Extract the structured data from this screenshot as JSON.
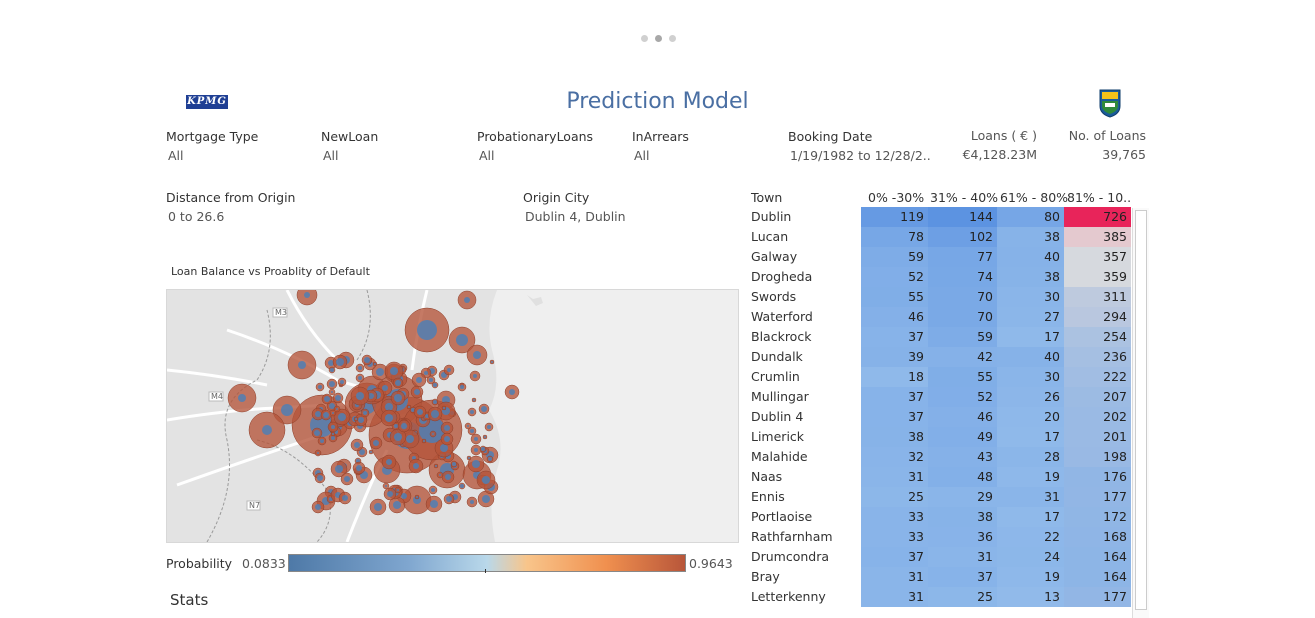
{
  "header": {
    "title": "Prediction Model",
    "left_logo": "KPMG",
    "right_logo_icon": "ucd-crest-icon"
  },
  "pager": {
    "count": 3,
    "active": 1
  },
  "filters": [
    {
      "label": "Mortgage Type",
      "value": "All"
    },
    {
      "label": "NewLoan",
      "value": "All"
    },
    {
      "label": "ProbationaryLoans",
      "value": "All"
    },
    {
      "label": "InArrears",
      "value": "All"
    },
    {
      "label": "Booking Date",
      "value": "1/19/1982 to 12/28/2.."
    },
    {
      "label": "Distance from Origin",
      "value": "0 to 26.6"
    },
    {
      "label": "Origin City",
      "value": "Dublin 4, Dublin"
    }
  ],
  "kpis": [
    {
      "label": "Loans ( € )",
      "value": "€4,128.23M"
    },
    {
      "label": "No. of Loans",
      "value": "39,765"
    }
  ],
  "map": {
    "title": "Loan Balance vs Proablity of Default",
    "road_labels": [
      "M3",
      "M4",
      "N7"
    ]
  },
  "legend": {
    "label": "Probability",
    "min": "0.0833",
    "max": "0.9643",
    "marker": 0.5
  },
  "stats": {
    "label": "Stats"
  },
  "table": {
    "town_header": "Town",
    "columns": [
      "0% -30%",
      "31% - 40%",
      "61% - 80%",
      "81% - 10.."
    ],
    "rows": [
      {
        "town": "Dublin",
        "values": [
          "119",
          "144",
          "80",
          "726"
        ]
      },
      {
        "town": "Lucan",
        "values": [
          "78",
          "102",
          "38",
          "385"
        ]
      },
      {
        "town": "Galway",
        "values": [
          "59",
          "77",
          "40",
          "357"
        ]
      },
      {
        "town": "Drogheda",
        "values": [
          "52",
          "74",
          "38",
          "359"
        ]
      },
      {
        "town": "Swords",
        "values": [
          "55",
          "70",
          "30",
          "311"
        ]
      },
      {
        "town": "Waterford",
        "values": [
          "46",
          "70",
          "27",
          "294"
        ]
      },
      {
        "town": "Blackrock",
        "values": [
          "37",
          "59",
          "17",
          "254"
        ]
      },
      {
        "town": "Dundalk",
        "values": [
          "39",
          "42",
          "40",
          "236"
        ]
      },
      {
        "town": "Crumlin",
        "values": [
          "18",
          "55",
          "30",
          "222"
        ]
      },
      {
        "town": "Mullingar",
        "values": [
          "37",
          "52",
          "26",
          "207"
        ]
      },
      {
        "town": "Dublin 4",
        "values": [
          "37",
          "46",
          "20",
          "202"
        ]
      },
      {
        "town": "Limerick",
        "values": [
          "38",
          "49",
          "17",
          "201"
        ]
      },
      {
        "town": "Malahide",
        "values": [
          "32",
          "43",
          "28",
          "198"
        ]
      },
      {
        "town": "Naas",
        "values": [
          "31",
          "48",
          "19",
          "176"
        ]
      },
      {
        "town": "Ennis",
        "values": [
          "25",
          "29",
          "31",
          "177"
        ]
      },
      {
        "town": "Portlaoise",
        "values": [
          "33",
          "38",
          "17",
          "172"
        ]
      },
      {
        "town": "Rathfarnham",
        "values": [
          "33",
          "36",
          "22",
          "168"
        ]
      },
      {
        "town": "Drumcondra",
        "values": [
          "37",
          "31",
          "24",
          "164"
        ]
      },
      {
        "town": "Bray",
        "values": [
          "31",
          "37",
          "19",
          "164"
        ]
      },
      {
        "town": "Letterkenny",
        "values": [
          "31",
          "25",
          "13",
          "177"
        ]
      }
    ]
  },
  "colors": {
    "title": "#4a6fa3",
    "heat_low": "#5b9be6",
    "heat_high": "#e8245a",
    "bubble_outer": "#b5553a",
    "bubble_inner": "#4f7fb4"
  }
}
